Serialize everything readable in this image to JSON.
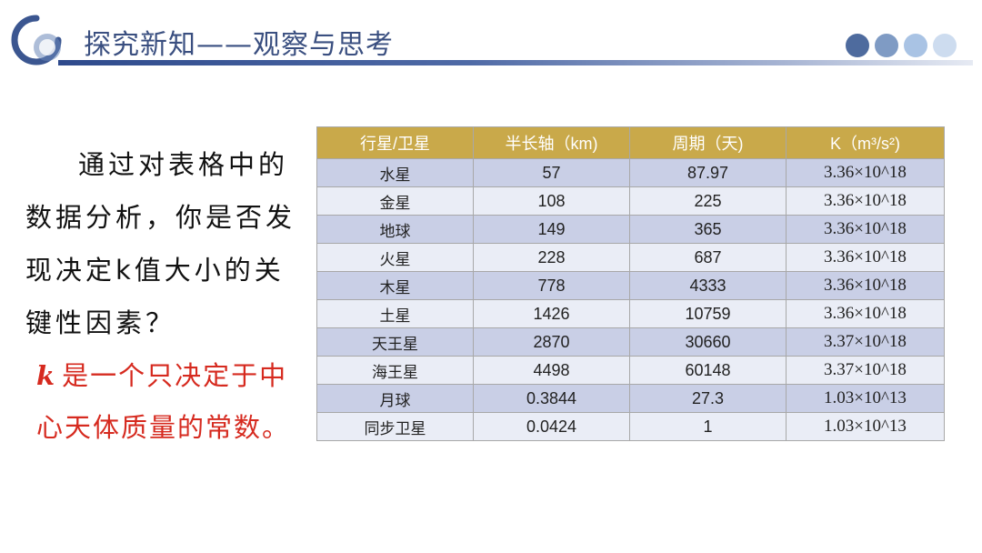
{
  "header": {
    "title": "探究新知——观察与思考",
    "logo_icon": "ring-logo-icon",
    "accent_color": "#2e4a8c",
    "dot_colors": [
      "#4e6b9e",
      "#7f9bc4",
      "#a9c3e4",
      "#cddcef"
    ]
  },
  "question": {
    "lines": [
      "通过对表格中",
      "的数据分析，你是",
      "否发现决定k值大",
      "小的关键性因素？"
    ]
  },
  "answer": {
    "k": "k",
    "line1_rest": "是一个只决定于中",
    "line2": "心天体质量的常数。"
  },
  "table": {
    "headers": [
      "行星/卫星",
      "半长轴（km)",
      "周期（天)",
      "K（m³/s²)"
    ],
    "rows": [
      [
        "水星",
        "57",
        "87.97",
        "3.36×10^18"
      ],
      [
        "金星",
        "108",
        "225",
        "3.36×10^18"
      ],
      [
        "地球",
        "149",
        "365",
        "3.36×10^18"
      ],
      [
        "火星",
        "228",
        "687",
        "3.36×10^18"
      ],
      [
        "木星",
        "778",
        "4333",
        "3.36×10^18"
      ],
      [
        "土星",
        "1426",
        "10759",
        "3.36×10^18"
      ],
      [
        "天王星",
        "2870",
        "30660",
        "3.37×10^18"
      ],
      [
        "海王星",
        "4498",
        "60148",
        "3.37×10^18"
      ],
      [
        "月球",
        "0.3844",
        "27.3",
        "1.03×10^13"
      ],
      [
        "同步卫星",
        "0.0424",
        "1",
        "1.03×10^13"
      ]
    ]
  }
}
